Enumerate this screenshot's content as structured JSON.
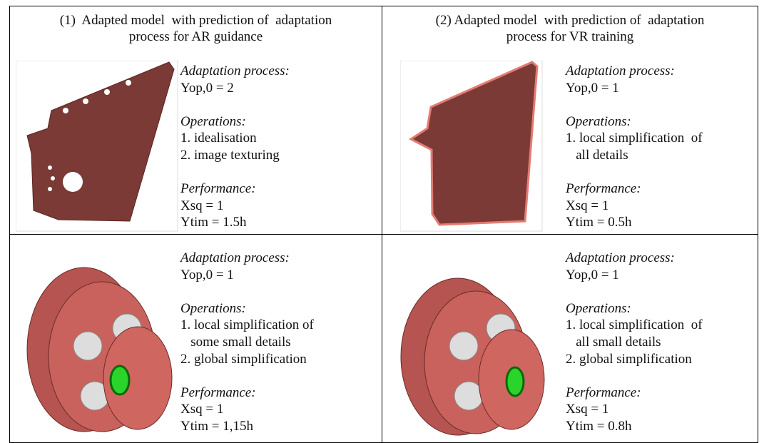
{
  "columns": [
    {
      "title": [
        "(1)  Adapted model  with prediction of  adaptation",
        "process for AR guidance"
      ],
      "rows": [
        {
          "sections": [
            {
              "heading": "Adaptation process:",
              "lines": [
                "Yop,0 = 2"
              ]
            },
            {
              "heading": "Operations:",
              "lines": [
                "1. idealisation",
                "2. image texturing"
              ]
            },
            {
              "heading": "Performance:",
              "lines": [
                "Xsq = 1",
                "Ytim = 1.5h"
              ]
            }
          ]
        },
        {
          "sections": [
            {
              "heading": "Adaptation process:",
              "lines": [
                "Yop,0 = 1"
              ]
            },
            {
              "heading": "Operations:",
              "lines": [
                "1. local simplification of",
                "   some small details",
                "2. global simplification"
              ]
            },
            {
              "heading": "Performance:",
              "lines": [
                "Xsq = 1",
                "Ytim = 1,15h"
              ]
            }
          ]
        }
      ]
    },
    {
      "title": [
        "(2) Adapted model  with prediction of  adaptation",
        "process for VR training"
      ],
      "rows": [
        {
          "sections": [
            {
              "heading": "Adaptation process:",
              "lines": [
                "Yop,0 = 1"
              ]
            },
            {
              "heading": "Operations:",
              "lines": [
                "1. local simplification  of",
                "   all details"
              ]
            },
            {
              "heading": "Performance:",
              "lines": [
                "Xsq = 1",
                "Ytim = 0.5h"
              ]
            }
          ]
        },
        {
          "sections": [
            {
              "heading": "Adaptation process:",
              "lines": [
                "Yop,0 = 1"
              ]
            },
            {
              "heading": "Operations:",
              "lines": [
                "1. local simplification  of",
                "   all small details",
                "2. global simplification"
              ]
            },
            {
              "heading": "Performance:",
              "lines": [
                "Xsq = 1",
                "Ytim = 0.8h"
              ]
            }
          ]
        }
      ]
    }
  ]
}
